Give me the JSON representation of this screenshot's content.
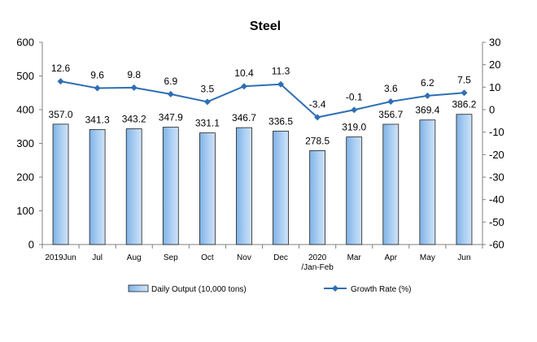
{
  "chart_data": {
    "type": "bar+line",
    "title": "Steel",
    "categories": [
      "2019Jun",
      "Jul",
      "Aug",
      "Sep",
      "Oct",
      "Nov",
      "Dec",
      "2020\n/Jan-Feb",
      "Mar",
      "Apr",
      "May",
      "Jun"
    ],
    "series": [
      {
        "name": "Daily Output (10,000 tons)",
        "type": "bar",
        "axis": "left",
        "values": [
          357.0,
          341.3,
          343.2,
          347.9,
          331.1,
          346.7,
          336.5,
          278.5,
          319.0,
          356.7,
          369.4,
          386.2
        ],
        "labels": [
          "357.0",
          "341.3",
          "343.2",
          "347.9",
          "331.1",
          "346.7",
          "336.5",
          "278.5",
          "319.0",
          "356.7",
          "369.4",
          "386.2"
        ],
        "color": "#a9cdf2"
      },
      {
        "name": "Growth Rate (%)",
        "type": "line",
        "axis": "right",
        "values": [
          12.6,
          9.6,
          9.8,
          6.9,
          3.5,
          10.4,
          11.3,
          -3.4,
          -0.1,
          3.6,
          6.2,
          7.5
        ],
        "labels": [
          "12.6",
          "9.6",
          "9.8",
          "6.9",
          "3.5",
          "10.4",
          "11.3",
          "-3.4",
          "-0.1",
          "3.6",
          "6.2",
          "7.5"
        ],
        "color": "#2e6fb3"
      }
    ],
    "y_left": {
      "min": 0,
      "max": 600,
      "ticks": [
        0,
        100,
        200,
        300,
        400,
        500,
        600
      ]
    },
    "y_right": {
      "min": -60,
      "max": 30,
      "ticks": [
        -60,
        -50,
        -40,
        -30,
        -20,
        -10,
        0,
        10,
        20,
        30
      ]
    },
    "grid": false,
    "legend": "bottom"
  }
}
